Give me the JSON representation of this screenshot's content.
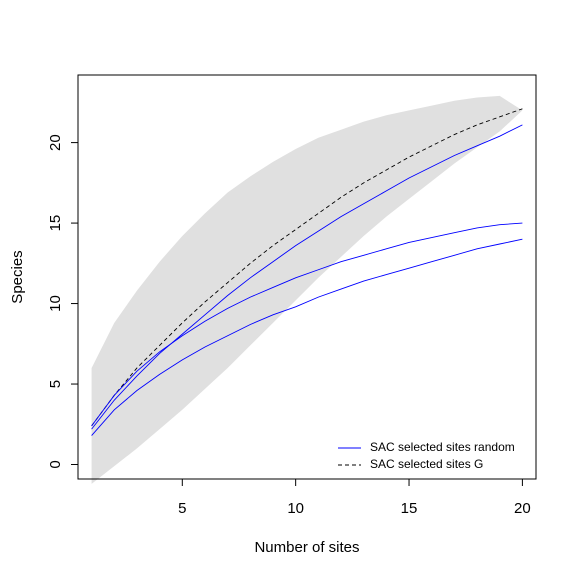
{
  "chart_data": {
    "type": "line",
    "title": "",
    "xlabel": "Number of sites",
    "ylabel": "Species",
    "xlim": [
      0.4,
      20.6
    ],
    "ylim": [
      -0.9,
      24.2
    ],
    "xticks": [
      5,
      10,
      15,
      20
    ],
    "yticks": [
      0,
      5,
      10,
      15,
      20
    ],
    "grid": false,
    "x": [
      1,
      2,
      3,
      4,
      5,
      6,
      7,
      8,
      9,
      10,
      11,
      12,
      13,
      14,
      15,
      16,
      17,
      18,
      19,
      20
    ],
    "band": {
      "color": "#e0e0e0",
      "lower": [
        -1.2,
        -0.1,
        1.0,
        2.2,
        3.4,
        4.7,
        6.0,
        7.4,
        8.8,
        10.2,
        11.6,
        12.9,
        14.2,
        15.4,
        16.5,
        17.6,
        18.7,
        19.7,
        20.7,
        22.0
      ],
      "upper": [
        6.0,
        8.8,
        10.8,
        12.6,
        14.2,
        15.6,
        16.9,
        17.9,
        18.8,
        19.6,
        20.3,
        20.8,
        21.3,
        21.7,
        22.0,
        22.3,
        22.6,
        22.8,
        22.9,
        22.0
      ]
    },
    "series": [
      {
        "name": "SAC selected sites random",
        "style": "solid",
        "color": "#0000ff",
        "values": [
          2.2,
          4.0,
          5.5,
          6.9,
          8.1,
          9.3,
          10.5,
          11.6,
          12.6,
          13.6,
          14.5,
          15.4,
          16.2,
          17.0,
          17.8,
          18.5,
          19.2,
          19.8,
          20.4,
          21.1
        ]
      },
      {
        "name": "SAC selected sites G",
        "style": "dashed",
        "color": "#000000",
        "values": [
          2.4,
          4.3,
          6.0,
          7.4,
          8.8,
          10.1,
          11.3,
          12.5,
          13.6,
          14.6,
          15.6,
          16.6,
          17.5,
          18.3,
          19.1,
          19.8,
          20.5,
          21.1,
          21.6,
          22.1
        ]
      },
      {
        "style": "solid",
        "color": "#0000ff",
        "values": [
          2.4,
          4.3,
          5.8,
          7.0,
          8.0,
          8.9,
          9.7,
          10.4,
          11.0,
          11.6,
          12.1,
          12.6,
          13.0,
          13.4,
          13.8,
          14.1,
          14.4,
          14.7,
          14.9,
          15.0
        ]
      },
      {
        "style": "solid",
        "color": "#0000ff",
        "values": [
          1.8,
          3.4,
          4.6,
          5.6,
          6.5,
          7.3,
          8.0,
          8.7,
          9.3,
          9.8,
          10.4,
          10.9,
          11.4,
          11.8,
          12.2,
          12.6,
          13.0,
          13.4,
          13.7,
          14.0
        ]
      }
    ],
    "legend": {
      "position": "bottom-right",
      "entries": [
        {
          "label": "SAC selected sites random",
          "style": "solid",
          "color": "#0000ff"
        },
        {
          "label": "SAC selected sites G",
          "style": "dashed",
          "color": "#000000"
        }
      ]
    }
  }
}
